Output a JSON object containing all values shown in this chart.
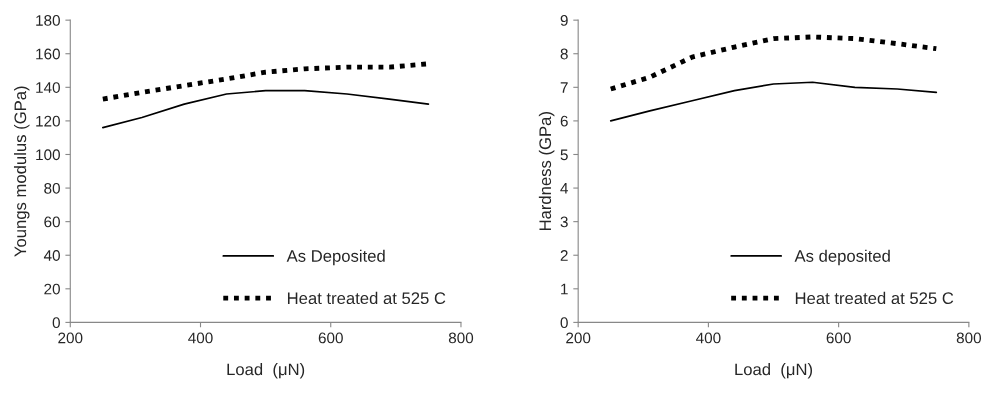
{
  "chart_data": [
    {
      "type": "line",
      "xlabel": "Load  (μN)",
      "ylabel": "Youngs modulus (GPa)",
      "x": [
        250,
        310,
        375,
        440,
        500,
        560,
        625,
        690,
        750
      ],
      "series": [
        {
          "name": "As Deposited",
          "color": "#000000",
          "line_style": "solid",
          "values": [
            116,
            122,
            130,
            136,
            138,
            138,
            136,
            133,
            130
          ]
        },
        {
          "name": "Heat treated at 525 C",
          "color": "#000000",
          "line_style": "dotted",
          "values": [
            133,
            137,
            141,
            145,
            149,
            151,
            152,
            152,
            154
          ]
        }
      ],
      "xlim": [
        200,
        800
      ],
      "xticks": [
        200,
        400,
        600,
        800
      ],
      "ylim": [
        0,
        180
      ],
      "yticks": [
        0,
        20,
        40,
        60,
        80,
        100,
        120,
        140,
        160,
        180
      ],
      "grid": false,
      "legend": "bottom right",
      "marker": "none"
    },
    {
      "type": "line",
      "xlabel": "Load  (μN)",
      "ylabel": "Hardness (GPa)",
      "x": [
        250,
        310,
        375,
        440,
        500,
        560,
        625,
        690,
        750
      ],
      "series": [
        {
          "name": "As deposited",
          "color": "#000000",
          "line_style": "solid",
          "values": [
            6.0,
            6.3,
            6.6,
            6.9,
            7.1,
            7.15,
            7.0,
            6.95,
            6.85
          ]
        },
        {
          "name": "Heat treated at 525 C",
          "color": "#000000",
          "line_style": "dotted",
          "values": [
            6.95,
            7.3,
            7.9,
            8.2,
            8.45,
            8.5,
            8.45,
            8.3,
            8.15
          ]
        }
      ],
      "xlim": [
        200,
        800
      ],
      "xticks": [
        200,
        400,
        600,
        800
      ],
      "ylim": [
        0,
        9
      ],
      "yticks": [
        0,
        1,
        2,
        3,
        4,
        5,
        6,
        7,
        8,
        9
      ],
      "grid": false,
      "legend": "bottom right",
      "marker": "none"
    }
  ]
}
